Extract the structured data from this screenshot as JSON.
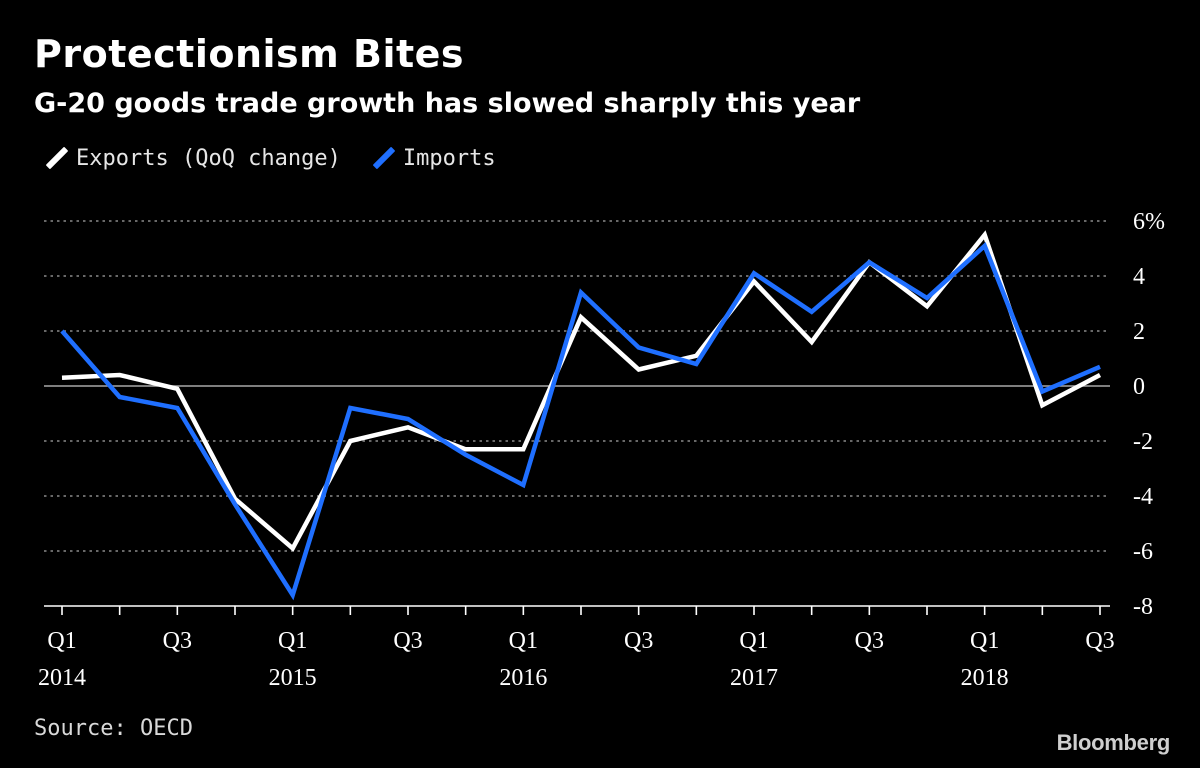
{
  "title": "Protectionism Bites",
  "subtitle": "G-20 goods trade growth has slowed sharply this year",
  "source": "Source: OECD",
  "brand": "Bloomberg",
  "colors": {
    "background": "#000000",
    "exports": "#ffffff",
    "imports": "#1f6fff",
    "grid": "#8a8a8a",
    "zero_line": "#a8a8a8"
  },
  "chart_data": {
    "type": "line",
    "title": "Protectionism Bites",
    "subtitle": "G-20 goods trade growth has slowed sharply this year",
    "xlabel": "",
    "ylabel": "",
    "ylim": [
      -8,
      6
    ],
    "yticks": [
      6,
      4,
      2,
      0,
      -2,
      -4,
      -6,
      -8
    ],
    "ytick_labels": [
      "6%",
      "4",
      "2",
      "0",
      "-2",
      "-4",
      "-6",
      "-8"
    ],
    "grid": true,
    "legend": "top-left",
    "x": [
      "2014 Q1",
      "2014 Q2",
      "2014 Q3",
      "2014 Q4",
      "2015 Q1",
      "2015 Q2",
      "2015 Q3",
      "2015 Q4",
      "2016 Q1",
      "2016 Q2",
      "2016 Q3",
      "2016 Q4",
      "2017 Q1",
      "2017 Q2",
      "2017 Q3",
      "2017 Q4",
      "2018 Q1",
      "2018 Q2",
      "2018 Q3"
    ],
    "xtick_labels": [
      {
        "index": 0,
        "quarter": "Q1",
        "year": "2014"
      },
      {
        "index": 2,
        "quarter": "Q3",
        "year": ""
      },
      {
        "index": 4,
        "quarter": "Q1",
        "year": "2015"
      },
      {
        "index": 6,
        "quarter": "Q3",
        "year": ""
      },
      {
        "index": 8,
        "quarter": "Q1",
        "year": "2016"
      },
      {
        "index": 10,
        "quarter": "Q3",
        "year": ""
      },
      {
        "index": 12,
        "quarter": "Q1",
        "year": "2017"
      },
      {
        "index": 14,
        "quarter": "Q3",
        "year": ""
      },
      {
        "index": 16,
        "quarter": "Q1",
        "year": "2018"
      },
      {
        "index": 18,
        "quarter": "Q3",
        "year": ""
      }
    ],
    "series": [
      {
        "name": "Exports (QoQ change)",
        "key": "exports",
        "color": "#ffffff",
        "values": [
          0.3,
          0.4,
          -0.1,
          -4.1,
          -5.9,
          -2.0,
          -1.5,
          -2.3,
          -2.3,
          2.5,
          0.6,
          1.1,
          3.8,
          1.6,
          4.5,
          2.9,
          5.5,
          -0.7,
          0.4
        ]
      },
      {
        "name": "Imports",
        "key": "imports",
        "color": "#1f6fff",
        "values": [
          2.0,
          -0.4,
          -0.8,
          -4.3,
          -7.6,
          -0.8,
          -1.2,
          -2.5,
          -3.6,
          3.4,
          1.4,
          0.8,
          4.1,
          2.7,
          4.5,
          3.2,
          5.1,
          -0.2,
          0.7
        ]
      }
    ]
  }
}
